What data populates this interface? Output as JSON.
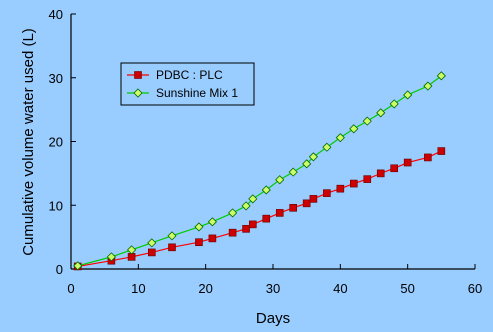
{
  "colors": {
    "background": "#99ccff",
    "plot_area": "#99ccff",
    "axis": "#000000",
    "series_plc_line": "#ff0000",
    "series_plc_marker": "#cc0000",
    "series_sunshine_line": "#00cc00",
    "series_sunshine_marker": "#ccff66"
  },
  "chart_data": {
    "type": "line",
    "title": "",
    "xlabel": "Days",
    "ylabel": "Cumulative volume water used (L)",
    "xlim": [
      0,
      60
    ],
    "ylim": [
      0,
      40
    ],
    "x_ticks": [
      0,
      10,
      20,
      30,
      40,
      50,
      60
    ],
    "y_ticks": [
      0,
      10,
      20,
      30,
      40
    ],
    "grid": false,
    "legend_position": "top-left",
    "series": [
      {
        "name": "PDBC : PLC",
        "marker": "square",
        "marker_icon": "red-square-marker-icon",
        "x": [
          1,
          6,
          9,
          12,
          15,
          19,
          21,
          24,
          26,
          27,
          29,
          31,
          33,
          35,
          36,
          38,
          40,
          42,
          44,
          46,
          48,
          50,
          53,
          55
        ],
        "y": [
          0.4,
          1.3,
          1.9,
          2.6,
          3.4,
          4.2,
          4.8,
          5.7,
          6.3,
          7.0,
          7.9,
          8.8,
          9.6,
          10.3,
          11.0,
          11.9,
          12.6,
          13.4,
          14.1,
          15.0,
          15.8,
          16.7,
          17.5,
          18.5
        ]
      },
      {
        "name": "Sunshine Mix 1",
        "marker": "diamond",
        "marker_icon": "green-diamond-marker-icon",
        "x": [
          1,
          6,
          9,
          12,
          15,
          19,
          21,
          24,
          26,
          27,
          29,
          31,
          33,
          35,
          36,
          38,
          40,
          42,
          44,
          46,
          48,
          50,
          53,
          55
        ],
        "y": [
          0.5,
          1.9,
          3.0,
          4.1,
          5.2,
          6.6,
          7.4,
          8.8,
          9.9,
          11.0,
          12.4,
          14.0,
          15.2,
          16.5,
          17.6,
          19.1,
          20.6,
          22.0,
          23.2,
          24.5,
          25.9,
          27.3,
          28.7,
          30.3
        ]
      }
    ]
  }
}
